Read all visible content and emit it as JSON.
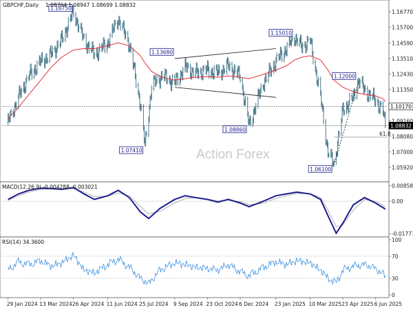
{
  "header": {
    "symbol": "GBPCHF,Daily",
    "ohlc": "1.08764 1.08947 1.08699 1.08832"
  },
  "watermark": "Action Forex",
  "price_panel": {
    "y_ticks": [
      "1.16770",
      "1.15700",
      "1.14590",
      "1.13510",
      "1.12430",
      "1.11350",
      "1.10170",
      "1.09160",
      "1.08080",
      "1.07000",
      "1.05920"
    ],
    "current_price": "1.08832",
    "marked_price": "1.10170",
    "fib_label": "61.8",
    "callouts": [
      {
        "label": "1.16750",
        "date": "2024-04-26",
        "value": 1.1675
      },
      {
        "label": "1.07410",
        "date": "2024-07-31",
        "value": 1.0741
      },
      {
        "label": "1.13680",
        "date": "2024-09-11",
        "value": 1.1368
      },
      {
        "label": "1.08860",
        "date": "2024-12-18",
        "value": 1.0886
      },
      {
        "label": "1.15010",
        "date": "2025-02-17",
        "value": 1.1501
      },
      {
        "label": "1.06100",
        "date": "2025-04-11",
        "value": 1.061
      },
      {
        "label": "1.12000",
        "date": "2025-05-14",
        "value": 1.12
      }
    ]
  },
  "macd_panel": {
    "title": "MACD(12,26,9) -0.004288 -0.003021",
    "y_ticks": [
      "0.008583",
      "0.00",
      "-0.017773"
    ]
  },
  "rsi_panel": {
    "title": "RSI(14) 34.3600",
    "y_ticks": [
      "100",
      "70",
      "30",
      "0"
    ]
  },
  "x_ticks": [
    "29 Jan 2024",
    "13 Mar 2024",
    "26 Apr 2024",
    "11 Jun 2024",
    "25 Jul 2024",
    "9 Sep 2024",
    "23 Oct 2024",
    "6 Dec 2024",
    "23 Jan 2025",
    "10 Mar 2025",
    "23 Apr 2025",
    "6 Jun 2025"
  ],
  "colors": {
    "price_bars": "#4a7a8c",
    "moving_average": "#e0303a",
    "macd_line": "#1a1a8c",
    "signal_line": "#b0b0b0",
    "rsi_line": "#3a8fe0",
    "callout_border": "#1a1a8c",
    "level_line": "#333333"
  },
  "chart_data": [
    {
      "type": "ohlc",
      "title": "GBPCHF,Daily",
      "ylim": [
        1.052,
        1.172
      ],
      "x": [
        "2024-01-29",
        "2024-02-12",
        "2024-02-26",
        "2024-03-13",
        "2024-03-27",
        "2024-04-10",
        "2024-04-26",
        "2024-05-10",
        "2024-05-24",
        "2024-06-11",
        "2024-06-25",
        "2024-07-10",
        "2024-07-25",
        "2024-07-31",
        "2024-08-09",
        "2024-08-23",
        "2024-09-09",
        "2024-09-23",
        "2024-10-07",
        "2024-10-23",
        "2024-11-06",
        "2024-11-20",
        "2024-12-06",
        "2024-12-18",
        "2025-01-06",
        "2025-01-23",
        "2025-02-06",
        "2025-02-17",
        "2025-02-27",
        "2025-03-10",
        "2025-03-24",
        "2025-04-03",
        "2025-04-11",
        "2025-04-23",
        "2025-05-07",
        "2025-05-14",
        "2025-05-22",
        "2025-06-06",
        "2025-06-16",
        "2025-06-19"
      ],
      "series": [
        {
          "values": [
            1.0905,
            1.108,
            1.123,
            1.133,
            1.138,
            1.148,
            1.1675,
            1.148,
            1.138,
            1.146,
            1.163,
            1.145,
            1.103,
            1.0741,
            1.116,
            1.123,
            1.118,
            1.129,
            1.125,
            1.127,
            1.125,
            1.13,
            1.123,
            1.0886,
            1.118,
            1.133,
            1.142,
            1.1501,
            1.143,
            1.148,
            1.108,
            1.07,
            1.061,
            1.099,
            1.108,
            1.12,
            1.113,
            1.106,
            1.098,
            1.0883
          ]
        },
        {
          "name": "Moving Average",
          "values": [
            1.093,
            1.101,
            1.11,
            1.12,
            1.129,
            1.136,
            1.141,
            1.142,
            1.142,
            1.144,
            1.146,
            1.144,
            1.137,
            1.132,
            1.126,
            1.122,
            1.12,
            1.121,
            1.122,
            1.1225,
            1.122,
            1.123,
            1.122,
            1.121,
            1.124,
            1.127,
            1.13,
            1.134,
            1.136,
            1.137,
            1.134,
            1.127,
            1.12,
            1.115,
            1.112,
            1.111,
            1.11,
            1.109,
            1.107,
            1.105
          ]
        }
      ],
      "trendlines": [
        {
          "from": [
            "2024-09-09",
            1.135
          ],
          "to": [
            "2025-01-23",
            1.142
          ]
        },
        {
          "from": [
            "2024-09-09",
            1.115
          ],
          "to": [
            "2025-01-23",
            1.108
          ]
        },
        {
          "from": [
            "2025-04-11",
            1.061
          ],
          "to": [
            "2025-05-14",
            1.119
          ]
        }
      ]
    },
    {
      "type": "line",
      "title": "MACD(12,26,9) -0.004288 -0.003021",
      "ylim": [
        -0.0185,
        0.0095
      ],
      "x": [
        "2024-01-29",
        "2024-02-12",
        "2024-02-26",
        "2024-03-13",
        "2024-03-27",
        "2024-04-10",
        "2024-04-26",
        "2024-05-10",
        "2024-05-24",
        "2024-06-11",
        "2024-06-25",
        "2024-07-10",
        "2024-07-25",
        "2024-08-05",
        "2024-08-20",
        "2024-09-09",
        "2024-09-23",
        "2024-10-07",
        "2024-10-23",
        "2024-11-06",
        "2024-11-20",
        "2024-12-06",
        "2024-12-18",
        "2025-01-06",
        "2025-01-23",
        "2025-02-06",
        "2025-02-20",
        "2025-03-10",
        "2025-03-24",
        "2025-04-03",
        "2025-04-14",
        "2025-04-23",
        "2025-05-07",
        "2025-05-22",
        "2025-06-06",
        "2025-06-19"
      ],
      "series": [
        {
          "name": "MACD",
          "values": [
            0.001,
            0.004,
            0.006,
            0.0072,
            0.007,
            0.0065,
            0.0075,
            0.004,
            0.001,
            0.003,
            0.006,
            0.002,
            -0.006,
            -0.0095,
            -0.004,
            0.001,
            0.003,
            0.002,
            0.001,
            -0.0005,
            0.001,
            -0.001,
            -0.003,
            0.0,
            0.003,
            0.004,
            0.005,
            0.004,
            0.001,
            -0.008,
            -0.0176,
            -0.012,
            -0.002,
            0.002,
            -0.001,
            -0.0043
          ]
        },
        {
          "name": "Signal",
          "values": [
            0.0005,
            0.003,
            0.005,
            0.0065,
            0.0068,
            0.0066,
            0.007,
            0.005,
            0.0025,
            0.0028,
            0.0045,
            0.003,
            -0.003,
            -0.007,
            -0.0055,
            -0.001,
            0.0015,
            0.002,
            0.0012,
            0.0002,
            0.0006,
            -0.0002,
            -0.002,
            -0.001,
            0.0015,
            0.003,
            0.0042,
            0.0042,
            0.002,
            -0.005,
            -0.014,
            -0.013,
            -0.005,
            0.001,
            0.0,
            -0.003
          ]
        }
      ]
    },
    {
      "type": "line",
      "title": "RSI(14) 34.3600",
      "ylim": [
        0,
        100
      ],
      "x": [
        "2024-01-29",
        "2024-02-12",
        "2024-02-26",
        "2024-03-13",
        "2024-03-27",
        "2024-04-10",
        "2024-04-26",
        "2024-05-10",
        "2024-05-24",
        "2024-06-11",
        "2024-06-25",
        "2024-07-10",
        "2024-07-25",
        "2024-08-05",
        "2024-08-20",
        "2024-09-09",
        "2024-09-23",
        "2024-10-07",
        "2024-10-23",
        "2024-11-06",
        "2024-11-20",
        "2024-12-06",
        "2024-12-18",
        "2025-01-06",
        "2025-01-23",
        "2025-02-06",
        "2025-02-20",
        "2025-03-10",
        "2025-03-24",
        "2025-04-03",
        "2025-04-14",
        "2025-04-23",
        "2025-05-07",
        "2025-05-22",
        "2025-06-06",
        "2025-06-19"
      ],
      "series": [
        {
          "name": "RSI(14)",
          "values": [
            45,
            60,
            55,
            62,
            52,
            58,
            72,
            45,
            40,
            55,
            65,
            50,
            30,
            20,
            45,
            58,
            55,
            50,
            48,
            45,
            55,
            42,
            35,
            50,
            60,
            55,
            62,
            58,
            45,
            30,
            22,
            45,
            52,
            55,
            48,
            34
          ]
        }
      ],
      "levels": [
        70,
        30
      ]
    }
  ]
}
